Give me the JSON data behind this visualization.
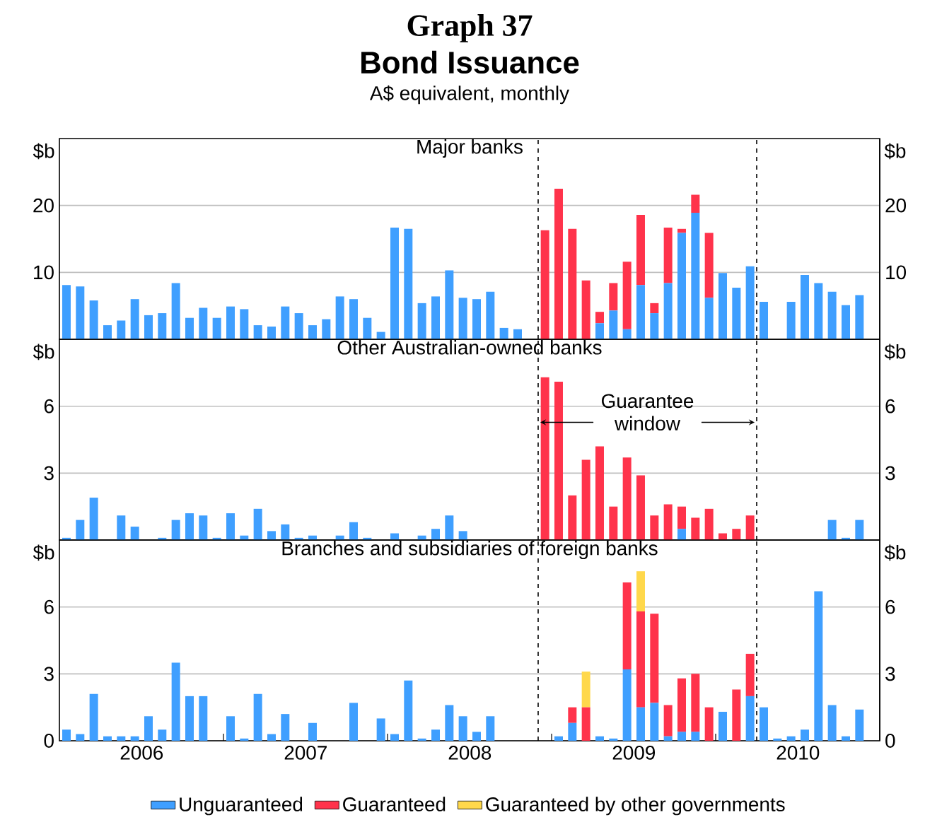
{
  "chart_data": [
    {
      "type": "bar",
      "stacked": true,
      "title": "Major banks",
      "annotations": [
        "Graph 37",
        "Bond Issuance",
        "A$ equivalent, monthly"
      ],
      "ylabel": "$b",
      "y2label": "$b",
      "xlim": [
        "2005-12-16",
        "2010-12-16"
      ],
      "ylim": [
        0,
        30
      ],
      "yticks": [
        10,
        20
      ],
      "y2lim": [
        0,
        30
      ],
      "y2ticks": [
        10,
        20
      ],
      "grid": "y",
      "tick_labels": "y",
      "x": [
        "2006-01",
        "2006-02",
        "2006-03",
        "2006-04",
        "2006-05",
        "2006-06",
        "2006-07",
        "2006-08",
        "2006-09",
        "2006-10",
        "2006-11",
        "2006-12",
        "2007-01",
        "2007-02",
        "2007-03",
        "2007-04",
        "2007-05",
        "2007-06",
        "2007-07",
        "2007-08",
        "2007-09",
        "2007-10",
        "2007-11",
        "2007-12",
        "2008-01",
        "2008-02",
        "2008-03",
        "2008-04",
        "2008-05",
        "2008-06",
        "2008-07",
        "2008-08",
        "2008-09",
        "2008-10",
        "2008-11",
        "2008-12",
        "2009-01",
        "2009-02",
        "2009-03",
        "2009-04",
        "2009-05",
        "2009-06",
        "2009-07",
        "2009-08",
        "2009-09",
        "2009-10",
        "2009-11",
        "2009-12",
        "2010-01",
        "2010-02",
        "2010-03",
        "2010-04",
        "2010-05",
        "2010-06",
        "2010-07",
        "2010-08",
        "2010-09",
        "2010-10",
        "2010-11"
      ],
      "series": [
        {
          "color": "#3f9fff",
          "values": [
            8.1,
            7.9,
            5.8,
            2.1,
            2.8,
            6.0,
            3.6,
            3.9,
            8.4,
            3.2,
            4.7,
            3.2,
            4.9,
            4.5,
            2.1,
            1.9,
            4.9,
            3.9,
            2.1,
            3.0,
            6.4,
            6.0,
            3.2,
            1.1,
            16.7,
            16.5,
            5.4,
            6.4,
            10.3,
            6.2,
            6.0,
            7.1,
            1.7,
            1.5,
            0,
            0,
            0,
            0,
            0,
            2.4,
            4.3,
            1.5,
            8.1,
            3.9,
            8.4,
            15.9,
            18.9,
            6.2,
            9.9,
            7.7,
            10.9,
            5.6,
            0,
            5.6,
            9.6,
            8.4,
            7.1,
            5.1,
            6.6
          ]
        },
        {
          "color": "#ff334b",
          "values": [
            0,
            0,
            0,
            0,
            0,
            0,
            0,
            0,
            0,
            0,
            0,
            0,
            0,
            0,
            0,
            0,
            0,
            0,
            0,
            0,
            0,
            0,
            0,
            0,
            0,
            0,
            0,
            0,
            0,
            0,
            0,
            0,
            0,
            0,
            0,
            16.3,
            22.5,
            16.5,
            8.8,
            1.7,
            4.1,
            10.1,
            10.5,
            1.5,
            8.3,
            0.6,
            2.7,
            9.7,
            0,
            0,
            0,
            0,
            0,
            0,
            0,
            0,
            0,
            0,
            0
          ]
        }
      ],
      "ref_lines": [
        {
          "axis": "x",
          "value": "2008-11-16",
          "line_style": "dashed"
        },
        {
          "axis": "x",
          "value": "2010-03-16",
          "line_style": "dashed"
        }
      ]
    },
    {
      "type": "bar",
      "stacked": true,
      "title": "Other Australian-owned banks",
      "annotations": [
        "Guarantee window"
      ],
      "ylabel": "$b",
      "y2label": "$b",
      "xlim": [
        "2005-12-16",
        "2010-12-16"
      ],
      "ylim": [
        0,
        9
      ],
      "yticks": [
        3,
        6
      ],
      "y2lim": [
        0,
        9
      ],
      "y2ticks": [
        3,
        6
      ],
      "grid": "y",
      "tick_labels": "y",
      "x": [
        "2006-01",
        "2006-02",
        "2006-03",
        "2006-04",
        "2006-05",
        "2006-06",
        "2006-07",
        "2006-08",
        "2006-09",
        "2006-10",
        "2006-11",
        "2006-12",
        "2007-01",
        "2007-02",
        "2007-03",
        "2007-04",
        "2007-05",
        "2007-06",
        "2007-07",
        "2007-08",
        "2007-09",
        "2007-10",
        "2007-11",
        "2007-12",
        "2008-01",
        "2008-02",
        "2008-03",
        "2008-04",
        "2008-05",
        "2008-06",
        "2008-07",
        "2008-08",
        "2008-09",
        "2008-10",
        "2008-11",
        "2008-12",
        "2009-01",
        "2009-02",
        "2009-03",
        "2009-04",
        "2009-05",
        "2009-06",
        "2009-07",
        "2009-08",
        "2009-09",
        "2009-10",
        "2009-11",
        "2009-12",
        "2010-01",
        "2010-02",
        "2010-03",
        "2010-04",
        "2010-05",
        "2010-06",
        "2010-07",
        "2010-08",
        "2010-09",
        "2010-10",
        "2010-11"
      ],
      "series": [
        {
          "color": "#3f9fff",
          "values": [
            0.1,
            0.9,
            1.9,
            0,
            1.1,
            0.6,
            0,
            0.1,
            0.9,
            1.2,
            1.1,
            0.1,
            1.2,
            0.2,
            1.4,
            0.4,
            0.7,
            0.1,
            0.2,
            0,
            0.2,
            0.8,
            0.1,
            0,
            0.3,
            0,
            0.2,
            0.5,
            1.1,
            0.4,
            0,
            0,
            0,
            0,
            0,
            0,
            0,
            0,
            0,
            0,
            0,
            0,
            0,
            0,
            0,
            0.5,
            0,
            0,
            0,
            0,
            0,
            0,
            0,
            0,
            0,
            0,
            0.9,
            0.1,
            0.9
          ]
        },
        {
          "color": "#ff334b",
          "values": [
            0,
            0,
            0,
            0,
            0,
            0,
            0,
            0,
            0,
            0,
            0,
            0,
            0,
            0,
            0,
            0,
            0,
            0,
            0,
            0,
            0,
            0,
            0,
            0,
            0,
            0,
            0,
            0,
            0,
            0,
            0,
            0,
            0,
            0,
            0,
            7.3,
            7.1,
            2.0,
            3.6,
            4.2,
            1.5,
            3.7,
            2.9,
            1.1,
            1.6,
            1.0,
            1.0,
            1.4,
            0.3,
            0.5,
            1.1,
            0,
            0,
            0,
            0,
            0,
            0,
            0,
            0
          ]
        }
      ],
      "ref_lines": [
        {
          "axis": "x",
          "value": "2008-11-16",
          "line_style": "dashed"
        },
        {
          "axis": "x",
          "value": "2010-03-16",
          "line_style": "dashed"
        }
      ]
    },
    {
      "type": "bar",
      "stacked": true,
      "title": "Branches and subsidiaries of foreign banks",
      "legend": "bottom",
      "ylabel": "$b",
      "y2label": "$b",
      "xlim": [
        "2005-12-16",
        "2010-12-16"
      ],
      "ylim": [
        0,
        9
      ],
      "yticks": [
        0,
        3,
        6
      ],
      "y2lim": [
        0,
        9
      ],
      "y2ticks": [
        0,
        3,
        6
      ],
      "grid": "y",
      "xticks": [
        {
          "value": "2006-06-16",
          "label": "2006"
        },
        {
          "value": "2006-12-16",
          "label": null
        },
        {
          "value": "2007-06-16",
          "label": "2007"
        },
        {
          "value": "2007-12-16",
          "label": null
        },
        {
          "value": "2008-06-16",
          "label": "2008"
        },
        {
          "value": "2008-12-16",
          "label": null
        },
        {
          "value": "2009-06-16",
          "label": "2009"
        },
        {
          "value": "2009-12-16",
          "label": null
        },
        {
          "value": "2010-06-16",
          "label": "2010"
        }
      ],
      "x": [
        "2006-01",
        "2006-02",
        "2006-03",
        "2006-04",
        "2006-05",
        "2006-06",
        "2006-07",
        "2006-08",
        "2006-09",
        "2006-10",
        "2006-11",
        "2006-12",
        "2007-01",
        "2007-02",
        "2007-03",
        "2007-04",
        "2007-05",
        "2007-06",
        "2007-07",
        "2007-08",
        "2007-09",
        "2007-10",
        "2007-11",
        "2007-12",
        "2008-01",
        "2008-02",
        "2008-03",
        "2008-04",
        "2008-05",
        "2008-06",
        "2008-07",
        "2008-08",
        "2008-09",
        "2008-10",
        "2008-11",
        "2008-12",
        "2009-01",
        "2009-02",
        "2009-03",
        "2009-04",
        "2009-05",
        "2009-06",
        "2009-07",
        "2009-08",
        "2009-09",
        "2009-10",
        "2009-11",
        "2009-12",
        "2010-01",
        "2010-02",
        "2010-03",
        "2010-04",
        "2010-05",
        "2010-06",
        "2010-07",
        "2010-08",
        "2010-09",
        "2010-10",
        "2010-11"
      ],
      "series": [
        {
          "name": "Unguaranteed",
          "color": "#3f9fff",
          "values": [
            0.5,
            0.3,
            2.1,
            0.2,
            0.2,
            0.2,
            1.1,
            0.5,
            3.5,
            2.0,
            2.0,
            0,
            1.1,
            0.1,
            2.1,
            0.3,
            1.2,
            0,
            0.8,
            0,
            0,
            1.7,
            0,
            1.0,
            0.3,
            2.7,
            0.1,
            0.5,
            1.6,
            1.1,
            0.4,
            1.1,
            0,
            0,
            0,
            0,
            0.2,
            0.8,
            0,
            0.2,
            0.1,
            3.2,
            1.5,
            1.7,
            0.2,
            0.4,
            0.4,
            0,
            1.3,
            0,
            2.0,
            1.5,
            0.1,
            0.2,
            0.5,
            6.7,
            1.6,
            0.2,
            1.4
          ]
        },
        {
          "name": "Guaranteed",
          "color": "#ff334b",
          "values": [
            0,
            0,
            0,
            0,
            0,
            0,
            0,
            0,
            0,
            0,
            0,
            0,
            0,
            0,
            0,
            0,
            0,
            0,
            0,
            0,
            0,
            0,
            0,
            0,
            0,
            0,
            0,
            0,
            0,
            0,
            0,
            0,
            0,
            0,
            0,
            0,
            0,
            0.7,
            1.5,
            0,
            0,
            3.9,
            4.3,
            4.0,
            1.4,
            2.4,
            2.6,
            1.5,
            0,
            2.3,
            1.9,
            0,
            0,
            0,
            0,
            0,
            0,
            0,
            0
          ]
        },
        {
          "name": "Guaranteed by other governments",
          "color": "#ffd84b",
          "values": [
            0,
            0,
            0,
            0,
            0,
            0,
            0,
            0,
            0,
            0,
            0,
            0,
            0,
            0,
            0,
            0,
            0,
            0,
            0,
            0,
            0,
            0,
            0,
            0,
            0,
            0,
            0,
            0,
            0,
            0,
            0,
            0,
            0,
            0,
            0,
            0,
            0,
            0,
            1.6,
            0,
            0,
            0,
            1.8,
            0,
            0,
            0,
            0,
            0,
            0,
            0,
            0,
            0,
            0,
            0,
            0,
            0,
            0,
            0,
            0
          ]
        }
      ],
      "ref_lines": [
        {
          "axis": "x",
          "value": "2008-11-16",
          "line_style": "dashed"
        },
        {
          "axis": "x",
          "value": "2010-03-16",
          "line_style": "dashed"
        }
      ]
    }
  ]
}
